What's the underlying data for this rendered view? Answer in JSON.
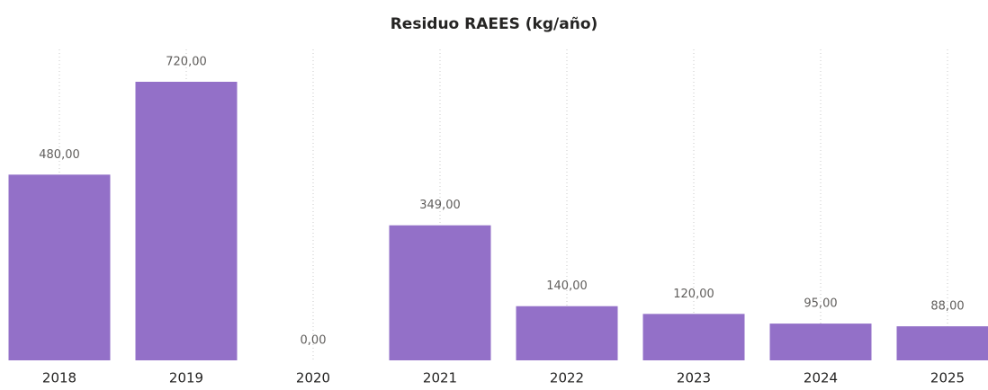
{
  "chart_data": {
    "type": "bar",
    "title": "Residuo RAEES (kg/año)",
    "categories": [
      "2018",
      "2019",
      "2020",
      "2021",
      "2022",
      "2023",
      "2024",
      "2025"
    ],
    "values": [
      480,
      720,
      0,
      349,
      140,
      120,
      95,
      88
    ],
    "value_labels": [
      "480,00",
      "720,00",
      "0,00",
      "349,00",
      "140,00",
      "120,00",
      "95,00",
      "88,00"
    ],
    "color": "#9370c8",
    "ylim": [
      0,
      720
    ]
  }
}
